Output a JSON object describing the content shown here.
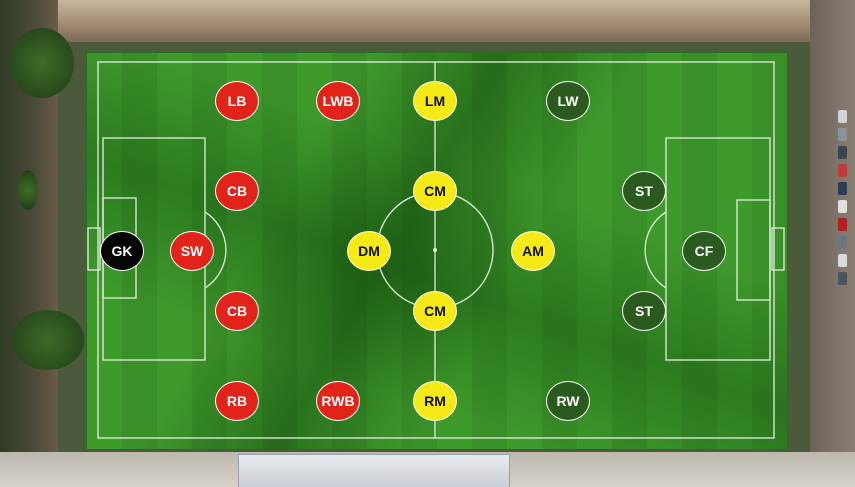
{
  "colors": {
    "defense": "#e2231a",
    "midfield": "#f6ea16",
    "attack": "#2a5a1e",
    "goalkeeper": "#050505"
  },
  "positions": [
    {
      "label": "GK",
      "group": "goalkeeper"
    },
    {
      "label": "SW",
      "group": "defense"
    },
    {
      "label": "LB",
      "group": "defense"
    },
    {
      "label": "CB",
      "group": "defense"
    },
    {
      "label": "CB",
      "group": "defense"
    },
    {
      "label": "RB",
      "group": "defense"
    },
    {
      "label": "LWB",
      "group": "defense"
    },
    {
      "label": "RWB",
      "group": "defense"
    },
    {
      "label": "LM",
      "group": "midfield"
    },
    {
      "label": "CM",
      "group": "midfield"
    },
    {
      "label": "DM",
      "group": "midfield"
    },
    {
      "label": "CM",
      "group": "midfield"
    },
    {
      "label": "RM",
      "group": "midfield"
    },
    {
      "label": "AM",
      "group": "midfield"
    },
    {
      "label": "LW",
      "group": "attack"
    },
    {
      "label": "RW",
      "group": "attack"
    },
    {
      "label": "ST",
      "group": "attack"
    },
    {
      "label": "ST",
      "group": "attack"
    },
    {
      "label": "CF",
      "group": "attack"
    }
  ]
}
